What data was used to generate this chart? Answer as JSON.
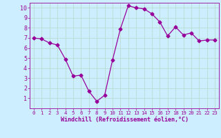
{
  "x": [
    0,
    1,
    2,
    3,
    4,
    5,
    6,
    7,
    8,
    9,
    10,
    11,
    12,
    13,
    14,
    15,
    16,
    17,
    18,
    19,
    20,
    21,
    22,
    23
  ],
  "y": [
    7.0,
    6.9,
    6.5,
    6.3,
    4.9,
    3.2,
    3.3,
    1.7,
    0.7,
    1.3,
    4.8,
    7.9,
    10.2,
    10.0,
    9.9,
    9.4,
    8.6,
    7.2,
    8.1,
    7.3,
    7.5,
    6.7,
    6.8,
    6.8
  ],
  "line_color": "#990099",
  "marker": "D",
  "marker_size": 2.5,
  "bg_color": "#cceeff",
  "grid_color": "#aaddcc",
  "xlabel": "Windchill (Refroidissement éolien,°C)",
  "xlabel_color": "#990099",
  "tick_color": "#990099",
  "ylim": [
    0,
    10.5
  ],
  "xlim": [
    -0.5,
    23.5
  ],
  "yticks": [
    1,
    2,
    3,
    4,
    5,
    6,
    7,
    8,
    9,
    10
  ],
  "xticks": [
    0,
    1,
    2,
    3,
    4,
    5,
    6,
    7,
    8,
    9,
    10,
    11,
    12,
    13,
    14,
    15,
    16,
    17,
    18,
    19,
    20,
    21,
    22,
    23
  ]
}
